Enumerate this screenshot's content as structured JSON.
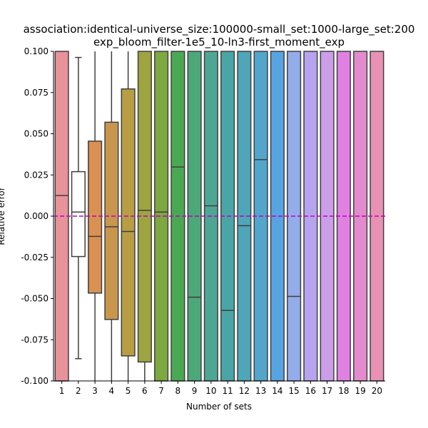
{
  "chart_data": {
    "type": "box",
    "title_line1": "association:identical-universe_size:100000-small_set:1000-large_set:200",
    "title_line2": "exp_bloom_filter-1e5_10-ln3-first_moment_exp",
    "xlabel": "Number of sets",
    "ylabel": "Relative error",
    "ylim": [
      -0.1,
      0.1
    ],
    "yticks": [
      "-0.100",
      "-0.075",
      "-0.050",
      "-0.025",
      "0.000",
      "0.025",
      "0.050",
      "0.075",
      "0.100"
    ],
    "categories": [
      "1",
      "2",
      "3",
      "4",
      "5",
      "6",
      "7",
      "8",
      "9",
      "10",
      "11",
      "12",
      "13",
      "14",
      "15",
      "16",
      "17",
      "18",
      "19",
      "20"
    ],
    "boxes": [
      {
        "q1": -0.1,
        "median": 0.0125,
        "q3": 0.1,
        "whisker_low": null,
        "whisker_high": null
      },
      {
        "q1": -0.0245,
        "median": 0.0025,
        "q3": 0.027,
        "whisker_low": -0.0865,
        "whisker_high": 0.0963
      },
      {
        "q1": -0.0467,
        "median": -0.0123,
        "q3": 0.0455,
        "whisker_low": -0.1,
        "whisker_high": 0.1
      },
      {
        "q1": -0.0627,
        "median": -0.0065,
        "q3": 0.057,
        "whisker_low": -0.1,
        "whisker_high": 0.1
      },
      {
        "q1": -0.0848,
        "median": -0.0093,
        "q3": 0.0772,
        "whisker_low": -0.1,
        "whisker_high": 0.1
      },
      {
        "q1": -0.0885,
        "median": 0.0035,
        "q3": 0.1,
        "whisker_low": -0.1,
        "whisker_high": null
      },
      {
        "q1": -0.1,
        "median": 0.0025,
        "q3": 0.1,
        "whisker_low": null,
        "whisker_high": null
      },
      {
        "q1": -0.1,
        "median": 0.0298,
        "q3": 0.1,
        "whisker_low": null,
        "whisker_high": null
      },
      {
        "q1": -0.1,
        "median": -0.0492,
        "q3": 0.1,
        "whisker_low": null,
        "whisker_high": null
      },
      {
        "q1": -0.1,
        "median": 0.0063,
        "q3": 0.1,
        "whisker_low": null,
        "whisker_high": null
      },
      {
        "q1": -0.1,
        "median": -0.0572,
        "q3": 0.1,
        "whisker_low": null,
        "whisker_high": null
      },
      {
        "q1": -0.1,
        "median": -0.0058,
        "q3": 0.1,
        "whisker_low": null,
        "whisker_high": null
      },
      {
        "q1": -0.1,
        "median": 0.0343,
        "q3": 0.1,
        "whisker_low": null,
        "whisker_high": null
      },
      {
        "q1": -0.1,
        "median": null,
        "q3": 0.1,
        "whisker_low": null,
        "whisker_high": null
      },
      {
        "q1": -0.1,
        "median": -0.0487,
        "q3": 0.1,
        "whisker_low": null,
        "whisker_high": null
      },
      {
        "q1": -0.1,
        "median": null,
        "q3": 0.1,
        "whisker_low": null,
        "whisker_high": null
      },
      {
        "q1": -0.1,
        "median": null,
        "q3": 0.1,
        "whisker_low": null,
        "whisker_high": null
      },
      {
        "q1": -0.1,
        "median": null,
        "q3": 0.1,
        "whisker_low": null,
        "whisker_high": null
      },
      {
        "q1": -0.1,
        "median": null,
        "q3": 0.1,
        "whisker_low": null,
        "whisker_high": null
      },
      {
        "q1": -0.1,
        "median": null,
        "q3": 0.1,
        "whisker_low": null,
        "whisker_high": null
      }
    ],
    "colors": [
      "#e8929a",
      "#ffffff",
      "#d99152",
      "#c9964e",
      "#b89d44",
      "#9ea43f",
      "#7ea840",
      "#49a953",
      "#4ca879",
      "#4ea794",
      "#4aa6a6",
      "#4ea6b8",
      "#52a6cc",
      "#58a4e2",
      "#93acea",
      "#b7a4ee",
      "#cc9ee8",
      "#e081e2",
      "#e38bcc",
      "#e891b4"
    ],
    "reference_line": {
      "y": 0.0,
      "color": "#c000c0",
      "style": "dashed"
    },
    "grid": false,
    "legend": "none"
  }
}
